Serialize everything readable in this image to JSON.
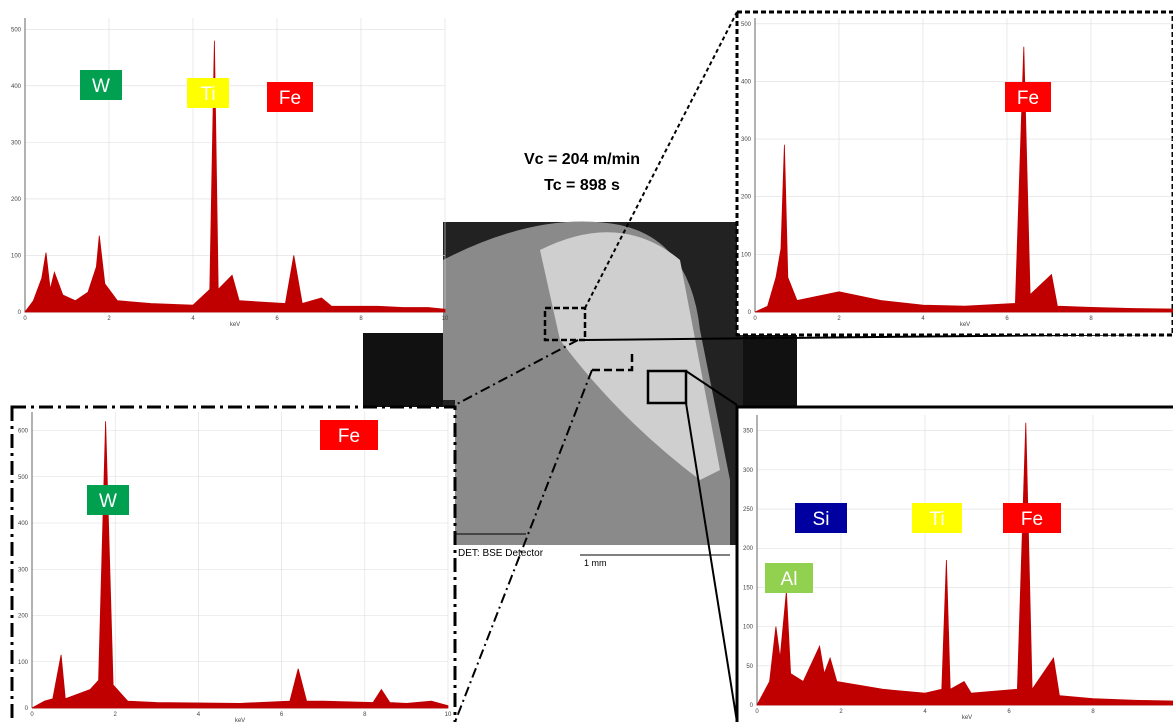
{
  "chart_data": [
    {
      "type": "area",
      "color": "#c00000",
      "x_label": "keV",
      "x": [
        0,
        0.2,
        0.4,
        0.5,
        0.6,
        0.7,
        0.9,
        1.2,
        1.5,
        1.7,
        1.77,
        1.9,
        2.2,
        3,
        4,
        4.4,
        4.51,
        4.6,
        4.93,
        5.1,
        6.2,
        6.4,
        6.6,
        7.06,
        7.3,
        8.4,
        9,
        9.6,
        10
      ],
      "values": [
        0,
        20,
        60,
        105,
        40,
        70,
        30,
        20,
        35,
        80,
        135,
        50,
        20,
        15,
        12,
        40,
        480,
        40,
        65,
        20,
        15,
        100,
        15,
        25,
        10,
        10,
        8,
        8,
        5
      ],
      "xlim": [
        0,
        10
      ],
      "ylim": [
        0,
        520
      ],
      "xticks": [
        0,
        2,
        4,
        6,
        8,
        10
      ],
      "yticks": [
        0,
        100,
        200,
        300,
        400,
        500
      ],
      "grid": true,
      "annotations": [
        {
          "text": "W",
          "color": "#00a050"
        },
        {
          "text": "Ti",
          "color": "#ffff00"
        },
        {
          "text": "Fe",
          "color": "#ff0000"
        }
      ]
    },
    {
      "type": "area",
      "color": "#c00000",
      "x_label": "keV",
      "x": [
        0,
        0.3,
        0.5,
        0.62,
        0.7,
        0.78,
        1,
        2,
        3,
        4,
        5,
        6.2,
        6.4,
        6.55,
        7.06,
        7.2,
        8,
        9,
        10
      ],
      "values": [
        0,
        10,
        60,
        110,
        290,
        60,
        20,
        35,
        20,
        12,
        10,
        15,
        460,
        30,
        65,
        10,
        8,
        6,
        5
      ],
      "xlim": [
        0,
        10
      ],
      "ylim": [
        0,
        510
      ],
      "xticks": [
        0,
        2,
        4,
        6,
        8
      ],
      "yticks": [
        0,
        100,
        200,
        300,
        400,
        500
      ],
      "grid": true,
      "annotations": [
        {
          "text": "Fe",
          "color": "#ff0000"
        }
      ]
    },
    {
      "type": "area",
      "color": "#c00000",
      "x_label": "keV",
      "x": [
        0,
        0.3,
        0.5,
        0.7,
        0.8,
        1.4,
        1.6,
        1.77,
        1.95,
        2.3,
        3,
        5,
        6.2,
        6.4,
        6.6,
        7,
        8.2,
        8.4,
        8.6,
        9,
        9.6,
        10
      ],
      "values": [
        0,
        15,
        20,
        115,
        20,
        40,
        60,
        620,
        50,
        15,
        12,
        10,
        15,
        85,
        15,
        15,
        12,
        40,
        12,
        10,
        15,
        5
      ],
      "xlim": [
        0,
        10
      ],
      "ylim": [
        0,
        640
      ],
      "xticks": [
        0,
        2,
        4,
        6,
        8,
        10
      ],
      "yticks": [
        0,
        100,
        200,
        300,
        400,
        500,
        600
      ],
      "grid": true,
      "annotations": [
        {
          "text": "Fe",
          "color": "#ff0000"
        },
        {
          "text": "W",
          "color": "#00a050"
        }
      ]
    },
    {
      "type": "area",
      "color": "#c00000",
      "x_label": "keV",
      "x": [
        0,
        0.3,
        0.45,
        0.55,
        0.7,
        0.8,
        1.1,
        1.49,
        1.6,
        1.74,
        1.9,
        3,
        4,
        4.4,
        4.51,
        4.6,
        4.93,
        5.1,
        6.2,
        6.4,
        6.55,
        7.06,
        7.2,
        8,
        9,
        10
      ],
      "values": [
        0,
        30,
        100,
        60,
        145,
        40,
        30,
        75,
        40,
        60,
        30,
        20,
        15,
        20,
        185,
        20,
        30,
        15,
        20,
        360,
        20,
        60,
        12,
        8,
        6,
        5
      ],
      "xlim": [
        0,
        10
      ],
      "ylim": [
        0,
        370
      ],
      "xticks": [
        0,
        2,
        4,
        6,
        8
      ],
      "yticks": [
        0,
        50,
        100,
        150,
        200,
        250,
        300,
        350
      ],
      "grid": true,
      "annotations": [
        {
          "text": "Si",
          "color": "#0000a0"
        },
        {
          "text": "Ti",
          "color": "#ffff00"
        },
        {
          "text": "Fe",
          "color": "#ff0000"
        },
        {
          "text": "Al",
          "color": "#92d050"
        }
      ]
    }
  ],
  "sem_image": {
    "detector": "DET: BSE Detector",
    "scale": "1 mm"
  },
  "conditions": [
    "Vc = 204 m/min",
    "Tc = 898 s"
  ]
}
